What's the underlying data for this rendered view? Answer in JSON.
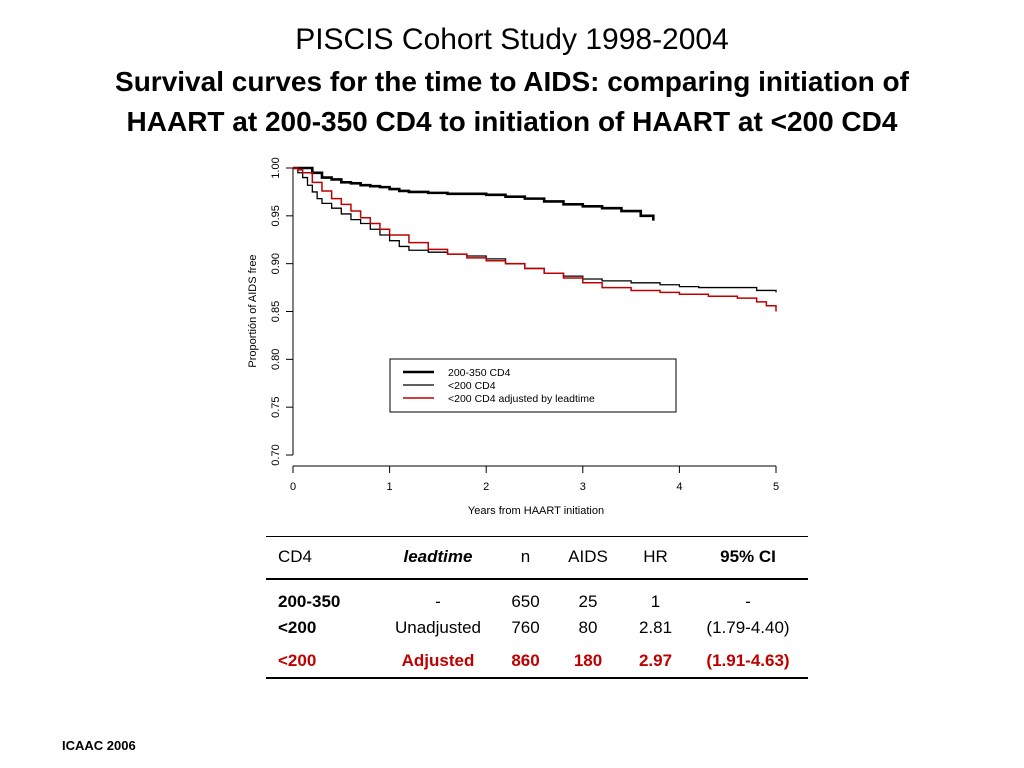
{
  "header": {
    "title_line1": "PISCIS Cohort Study 1998-2004",
    "title_line2": "Survival curves for the time to AIDS: comparing initiation of",
    "title_line3": "HAART at 200-350 CD4 to initiation of HAART at <200 CD4"
  },
  "chart_data": {
    "type": "line",
    "title": "",
    "xlabel": "Years from HAART initiation",
    "ylabel": "Proportión of AIDS free",
    "xlim": [
      0,
      5
    ],
    "ylim": [
      0.7,
      1.0
    ],
    "x_ticks": [
      "0",
      "1",
      "2",
      "3",
      "4",
      "5"
    ],
    "y_ticks": [
      "0.70",
      "0.75",
      "0.80",
      "0.85",
      "0.90",
      "0.95",
      "1.00"
    ],
    "grid": false,
    "legend_position": "bottom-right",
    "colors": {
      "cd4_200_350": "#000000",
      "cd4_lt200": "#000000",
      "cd4_lt200_adj": "#c00000"
    },
    "series": [
      {
        "name": "200-350 CD4",
        "style": "thick-black",
        "x": [
          0,
          0.1,
          0.2,
          0.3,
          0.4,
          0.5,
          0.6,
          0.7,
          0.8,
          0.9,
          1.0,
          1.1,
          1.2,
          1.4,
          1.6,
          1.8,
          2.0,
          2.2,
          2.4,
          2.6,
          2.8,
          3.0,
          3.2,
          3.4,
          3.6,
          3.73
        ],
        "y": [
          1.0,
          1.0,
          0.995,
          0.99,
          0.988,
          0.985,
          0.984,
          0.982,
          0.981,
          0.98,
          0.978,
          0.976,
          0.975,
          0.974,
          0.973,
          0.973,
          0.972,
          0.97,
          0.968,
          0.965,
          0.962,
          0.96,
          0.958,
          0.955,
          0.95,
          0.945
        ]
      },
      {
        "name": "<200 CD4",
        "style": "thin-black",
        "x": [
          0,
          0.05,
          0.1,
          0.15,
          0.2,
          0.25,
          0.3,
          0.4,
          0.5,
          0.6,
          0.7,
          0.8,
          0.9,
          1.0,
          1.1,
          1.2,
          1.4,
          1.6,
          1.8,
          2.0,
          2.2,
          2.4,
          2.6,
          2.8,
          3.0,
          3.2,
          3.5,
          3.8,
          4.0,
          4.2,
          4.5,
          4.8,
          5.0
        ],
        "y": [
          1.0,
          0.995,
          0.99,
          0.982,
          0.975,
          0.968,
          0.963,
          0.958,
          0.952,
          0.946,
          0.942,
          0.936,
          0.93,
          0.924,
          0.918,
          0.914,
          0.912,
          0.91,
          0.908,
          0.905,
          0.9,
          0.895,
          0.89,
          0.887,
          0.884,
          0.882,
          0.88,
          0.878,
          0.876,
          0.875,
          0.875,
          0.872,
          0.87
        ]
      },
      {
        "name": "<200 CD4 adjusted by leadtime",
        "style": "thin-red",
        "x": [
          0,
          0.05,
          0.1,
          0.2,
          0.3,
          0.4,
          0.5,
          0.6,
          0.7,
          0.8,
          0.9,
          1.0,
          1.2,
          1.4,
          1.6,
          1.8,
          2.0,
          2.2,
          2.4,
          2.6,
          2.8,
          3.0,
          3.2,
          3.5,
          3.8,
          4.0,
          4.3,
          4.6,
          4.8,
          4.9,
          5.0
        ],
        "y": [
          1.0,
          0.998,
          0.995,
          0.985,
          0.976,
          0.968,
          0.962,
          0.955,
          0.948,
          0.942,
          0.936,
          0.93,
          0.922,
          0.915,
          0.91,
          0.906,
          0.903,
          0.9,
          0.895,
          0.89,
          0.885,
          0.88,
          0.875,
          0.872,
          0.87,
          0.868,
          0.866,
          0.864,
          0.86,
          0.856,
          0.85
        ]
      }
    ]
  },
  "table": {
    "headers": [
      "CD4",
      "leadtime",
      "n",
      "AIDS",
      "HR",
      "95% CI"
    ],
    "rows": [
      [
        "200-350",
        "-",
        "650",
        "25",
        "1",
        "-"
      ],
      [
        "<200",
        "Unadjusted",
        "760",
        "80",
        "2.81",
        "(1.79-4.40)"
      ],
      [
        "<200",
        "Adjusted",
        "860",
        "180",
        "2.97",
        "(1.91-4.63)"
      ]
    ]
  },
  "footer": {
    "label": "ICAAC 2006"
  }
}
